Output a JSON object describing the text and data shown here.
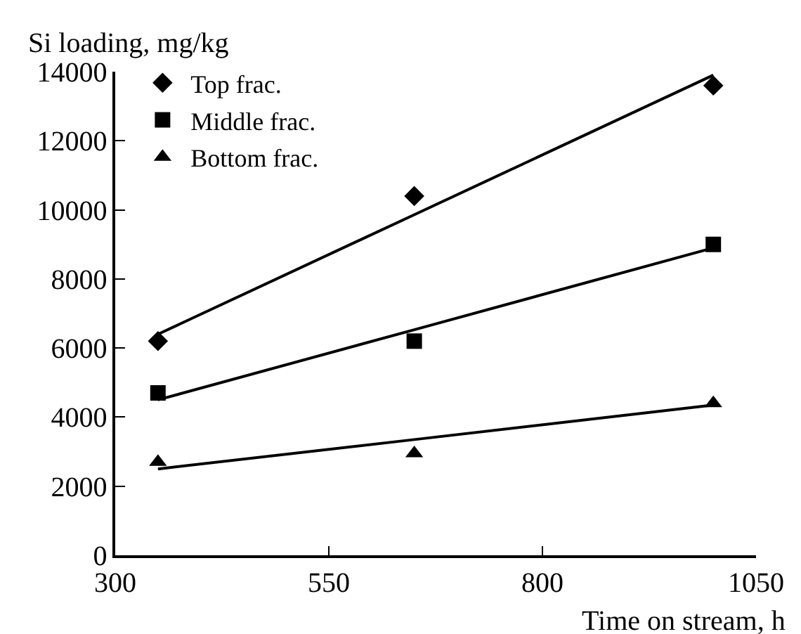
{
  "chart_data": {
    "type": "scatter",
    "xlabel": "Time on stream, h",
    "ylabel": "Si loading, mg/kg",
    "x": [
      350,
      650,
      1000
    ],
    "series": [
      {
        "name": "Top frac.",
        "color": "#000000",
        "marker": "diamond",
        "values": [
          6200,
          10400,
          13600
        ]
      },
      {
        "name": "Middle frac.",
        "color": "#000000",
        "marker": "square",
        "values": [
          4700,
          6200,
          9000
        ]
      },
      {
        "name": "Bottom frac.",
        "color": "#000000",
        "marker": "triangle",
        "values": [
          2700,
          2950,
          4400
        ]
      },
      {
        "type": "line",
        "color": "#000000",
        "values": [
          6400,
          9860,
          13900
        ]
      },
      {
        "type": "line",
        "color": "#000000",
        "values": [
          4500,
          6530,
          8900
        ]
      },
      {
        "type": "line",
        "color": "#000000",
        "values": [
          2500,
          3350,
          4350
        ]
      }
    ],
    "xlim": [
      300,
      1050
    ],
    "xticks": [
      300,
      550,
      800,
      1050
    ],
    "ylim": [
      0,
      14000
    ],
    "yticks": [
      0,
      2000,
      4000,
      6000,
      8000,
      10000,
      12000,
      14000
    ],
    "legend": "top left"
  }
}
